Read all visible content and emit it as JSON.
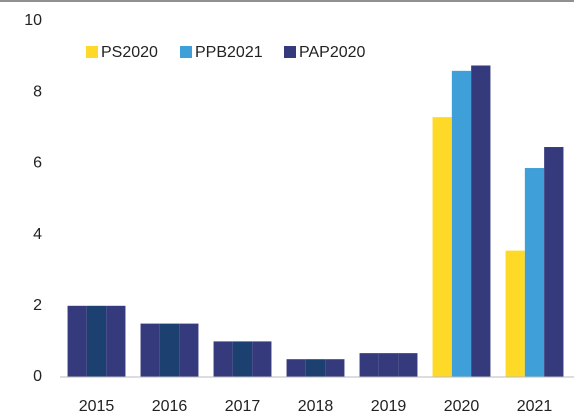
{
  "chart_data": {
    "type": "bar",
    "categories": [
      "2015",
      "2016",
      "2017",
      "2018",
      "2019",
      "2020",
      "2021"
    ],
    "series": [
      {
        "name": "PS2020",
        "color": "#ffd927",
        "values": [
          2.0,
          1.5,
          1.0,
          0.5,
          0.67,
          7.3,
          3.55
        ],
        "colors": [
          "#343a7c",
          "#343a7c",
          "#343a7c",
          "#343a7c",
          "#343a7c",
          "#ffd927",
          "#ffd927"
        ]
      },
      {
        "name": "PPB2021",
        "color": "#3fa0d9",
        "values": [
          2.0,
          1.5,
          1.0,
          0.5,
          0.67,
          8.6,
          5.87
        ],
        "colors": [
          "#1c4170",
          "#1c4170",
          "#1c4170",
          "#1c4170",
          "#343a7c",
          "#3fa0d9",
          "#3fa0d9"
        ]
      },
      {
        "name": "PAP2020",
        "color": "#343a7c",
        "values": [
          2.0,
          1.5,
          1.0,
          0.5,
          0.67,
          8.75,
          6.46
        ],
        "colors": [
          "#343a7c",
          "#343a7c",
          "#343a7c",
          "#343a7c",
          "#343a7c",
          "#343a7c",
          "#343a7c"
        ]
      }
    ],
    "ylim": [
      0,
      10
    ],
    "yticks": [
      0,
      2,
      4,
      6,
      8,
      10
    ],
    "legend": "top",
    "grid": false
  }
}
